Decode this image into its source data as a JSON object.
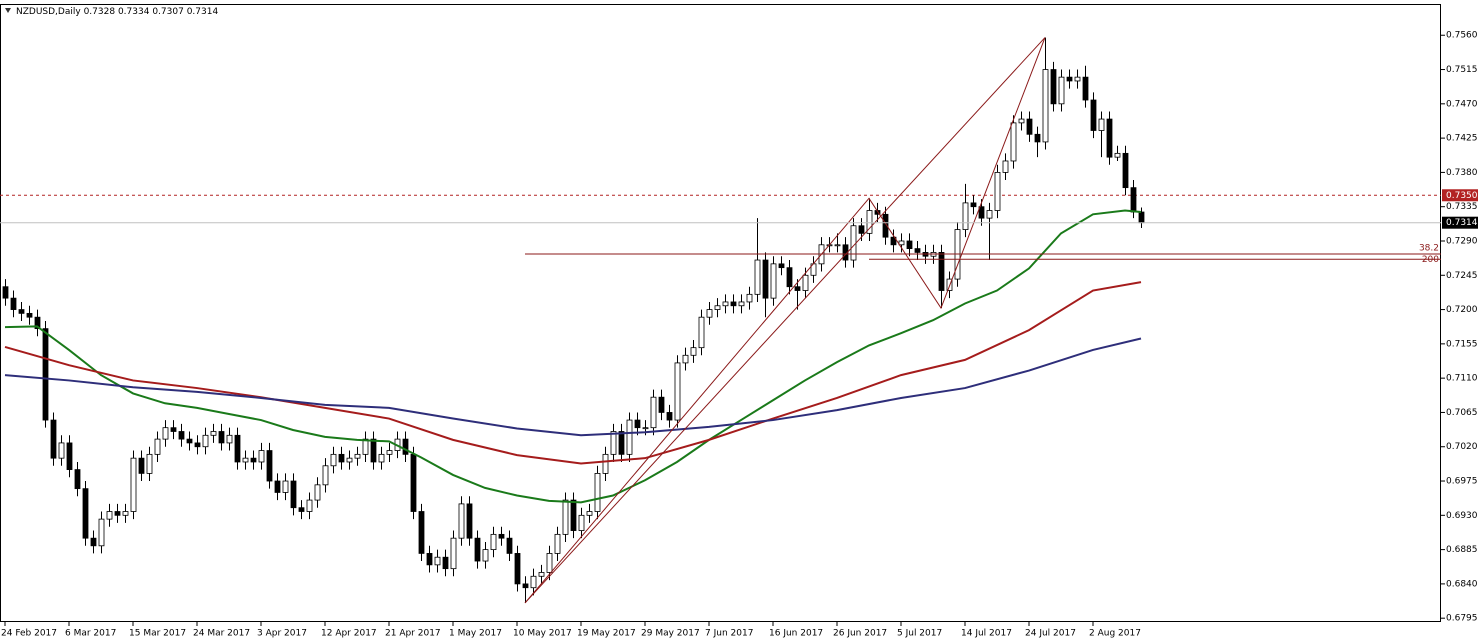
{
  "chart_data": {
    "type": "candlestick",
    "title": "NZDUSD,Daily",
    "categories": [
      "24 Feb 2017",
      null,
      null,
      null,
      null,
      null,
      null,
      null,
      "6 Mar 2017",
      null,
      null,
      null,
      null,
      null,
      null,
      null,
      "15 Mar 2017",
      null,
      null,
      null,
      null,
      null,
      null,
      null,
      "24 Mar 2017",
      null,
      null,
      null,
      null,
      null,
      null,
      null,
      "3 Apr 2017",
      null,
      null,
      null,
      null,
      null,
      null,
      null,
      "12 Apr 2017",
      null,
      null,
      null,
      null,
      null,
      null,
      null,
      "21 Apr 2017",
      null,
      null,
      null,
      null,
      null,
      null,
      null,
      "1 May 2017",
      null,
      null,
      null,
      null,
      null,
      null,
      null,
      "10 May 2017",
      null,
      null,
      null,
      null,
      null,
      null,
      null,
      "19 May 2017",
      null,
      null,
      null,
      null,
      null,
      null,
      null,
      "29 May 2017",
      null,
      null,
      null,
      null,
      null,
      null,
      null,
      "7 Jun 2017",
      null,
      null,
      null,
      null,
      null,
      null,
      null,
      "16 Jun 2017",
      null,
      null,
      null,
      null,
      null,
      null,
      null,
      "26 Jun 2017",
      null,
      null,
      null,
      null,
      null,
      null,
      null,
      "5 Jul 2017",
      null,
      null,
      null,
      null,
      null,
      null,
      null,
      "14 Jul 2017",
      null,
      null,
      null,
      null,
      null,
      null,
      null,
      "24 Jul 2017",
      null,
      null,
      null,
      null,
      null,
      null,
      null,
      "2 Aug 2017",
      null,
      null,
      null,
      null,
      null,
      null
    ],
    "open": [
      0.723,
      0.7215,
      0.72,
      0.7195,
      0.719,
      0.7175,
      0.7055,
      0.7005,
      0.7025,
      0.699,
      0.6965,
      0.69,
      0.689,
      0.6925,
      0.6935,
      0.693,
      0.6935,
      0.7005,
      0.6985,
      0.701,
      0.703,
      0.7045,
      0.704,
      0.703,
      0.7025,
      0.702,
      0.7035,
      0.704,
      0.7025,
      0.7035,
      0.7,
      0.7005,
      0.7,
      0.7015,
      0.6975,
      0.696,
      0.6975,
      0.694,
      0.6935,
      0.695,
      0.697,
      0.6995,
      0.701,
      0.7,
      0.7005,
      0.701,
      0.703,
      0.7,
      0.701,
      0.7015,
      0.703,
      0.701,
      0.6935,
      0.688,
      0.6865,
      0.6875,
      0.686,
      0.69,
      0.6945,
      0.69,
      0.687,
      0.6885,
      0.6905,
      0.69,
      0.688,
      0.684,
      0.6835,
      0.685,
      0.6855,
      0.688,
      0.6905,
      0.695,
      0.691,
      0.693,
      0.6935,
      0.6985,
      0.701,
      0.704,
      0.701,
      0.7055,
      0.7045,
      0.7045,
      0.7085,
      0.7065,
      0.7055,
      0.713,
      0.714,
      0.715,
      0.719,
      0.72,
      0.7205,
      0.721,
      0.7205,
      0.721,
      0.722,
      0.7265,
      0.7215,
      0.726,
      0.7255,
      0.723,
      0.7225,
      0.7245,
      0.726,
      0.7285,
      0.7285,
      0.7285,
      0.7265,
      0.731,
      0.73,
      0.733,
      0.7325,
      0.7295,
      0.7285,
      0.729,
      0.728,
      0.7275,
      0.727,
      0.7275,
      0.7225,
      0.724,
      0.7305,
      0.734,
      0.7335,
      0.732,
      0.733,
      0.738,
      0.7395,
      0.7445,
      0.745,
      0.743,
      0.742,
      0.7515,
      0.747,
      0.7505,
      0.75,
      0.7505,
      0.7475,
      0.7435,
      0.745,
      0.74,
      0.7405,
      0.736,
      0.7328
    ],
    "high": [
      0.724,
      0.7225,
      0.721,
      0.7205,
      0.72,
      0.7185,
      0.7065,
      0.7035,
      0.7035,
      0.7,
      0.6975,
      0.691,
      0.6935,
      0.6945,
      0.6945,
      0.6945,
      0.7015,
      0.7015,
      0.702,
      0.704,
      0.7055,
      0.7055,
      0.705,
      0.704,
      0.7035,
      0.7045,
      0.705,
      0.705,
      0.7045,
      0.7045,
      0.7015,
      0.7015,
      0.7025,
      0.7025,
      0.6985,
      0.6985,
      0.6985,
      0.695,
      0.696,
      0.698,
      0.7005,
      0.702,
      0.702,
      0.7015,
      0.702,
      0.704,
      0.704,
      0.702,
      0.7025,
      0.704,
      0.704,
      0.702,
      0.6945,
      0.689,
      0.6885,
      0.6885,
      0.691,
      0.6955,
      0.6955,
      0.691,
      0.6895,
      0.6915,
      0.6915,
      0.691,
      0.689,
      0.685,
      0.686,
      0.6865,
      0.689,
      0.6915,
      0.696,
      0.696,
      0.694,
      0.6945,
      0.6995,
      0.702,
      0.705,
      0.705,
      0.7065,
      0.7065,
      0.7055,
      0.7095,
      0.7095,
      0.7075,
      0.714,
      0.715,
      0.716,
      0.72,
      0.721,
      0.7215,
      0.722,
      0.722,
      0.722,
      0.723,
      0.732,
      0.7275,
      0.727,
      0.727,
      0.7265,
      0.724,
      0.7255,
      0.727,
      0.7295,
      0.7295,
      0.73,
      0.7295,
      0.732,
      0.732,
      0.7346,
      0.734,
      0.7335,
      0.7305,
      0.73,
      0.73,
      0.729,
      0.7285,
      0.7285,
      0.7285,
      0.725,
      0.7315,
      0.7365,
      0.735,
      0.7345,
      0.734,
      0.739,
      0.7405,
      0.7455,
      0.746,
      0.746,
      0.744,
      0.7557,
      0.7525,
      0.7515,
      0.7515,
      0.7515,
      0.752,
      0.7485,
      0.746,
      0.746,
      0.7415,
      0.7415,
      0.737,
      0.7334
    ],
    "low": [
      0.7205,
      0.719,
      0.7185,
      0.718,
      0.7165,
      0.7045,
      0.6995,
      0.6995,
      0.698,
      0.6955,
      0.689,
      0.688,
      0.688,
      0.6915,
      0.692,
      0.692,
      0.6925,
      0.6975,
      0.6975,
      0.7,
      0.702,
      0.703,
      0.702,
      0.7015,
      0.701,
      0.701,
      0.7025,
      0.7015,
      0.7015,
      0.699,
      0.699,
      0.699,
      0.699,
      0.6965,
      0.695,
      0.695,
      0.693,
      0.6925,
      0.6925,
      0.694,
      0.696,
      0.6985,
      0.699,
      0.699,
      0.6995,
      0.7,
      0.699,
      0.699,
      0.7,
      0.7005,
      0.7,
      0.6925,
      0.687,
      0.6855,
      0.6855,
      0.685,
      0.685,
      0.689,
      0.689,
      0.686,
      0.686,
      0.6875,
      0.689,
      0.687,
      0.683,
      0.6815,
      0.6825,
      0.684,
      0.6845,
      0.687,
      0.6895,
      0.69,
      0.69,
      0.692,
      0.6925,
      0.6975,
      0.7,
      0.7,
      0.7,
      0.7035,
      0.7035,
      0.7035,
      0.7055,
      0.7045,
      0.7045,
      0.712,
      0.713,
      0.714,
      0.718,
      0.719,
      0.7195,
      0.7195,
      0.7195,
      0.72,
      0.721,
      0.719,
      0.7205,
      0.7245,
      0.722,
      0.72,
      0.7215,
      0.7235,
      0.725,
      0.7275,
      0.7275,
      0.7255,
      0.7255,
      0.729,
      0.729,
      0.7315,
      0.7285,
      0.7275,
      0.7275,
      0.727,
      0.7265,
      0.726,
      0.726,
      0.7202,
      0.7215,
      0.723,
      0.7295,
      0.7325,
      0.731,
      0.7265,
      0.732,
      0.737,
      0.7385,
      0.7435,
      0.742,
      0.74,
      0.741,
      0.746,
      0.746,
      0.749,
      0.749,
      0.7465,
      0.7425,
      0.74,
      0.739,
      0.7395,
      0.735,
      0.732,
      0.7307
    ],
    "close": [
      0.7215,
      0.72,
      0.7195,
      0.719,
      0.7175,
      0.7055,
      0.7005,
      0.7025,
      0.699,
      0.6965,
      0.69,
      0.689,
      0.6925,
      0.6935,
      0.693,
      0.6935,
      0.7005,
      0.6985,
      0.701,
      0.703,
      0.7045,
      0.704,
      0.703,
      0.7025,
      0.702,
      0.7035,
      0.704,
      0.7025,
      0.7035,
      0.7,
      0.7005,
      0.7,
      0.7015,
      0.6975,
      0.696,
      0.6975,
      0.694,
      0.6935,
      0.695,
      0.697,
      0.6995,
      0.701,
      0.7,
      0.7005,
      0.701,
      0.703,
      0.7,
      0.701,
      0.7015,
      0.703,
      0.701,
      0.6935,
      0.688,
      0.6865,
      0.6875,
      0.686,
      0.69,
      0.6945,
      0.69,
      0.687,
      0.6885,
      0.6905,
      0.69,
      0.688,
      0.684,
      0.6835,
      0.685,
      0.6855,
      0.688,
      0.6905,
      0.695,
      0.691,
      0.693,
      0.6935,
      0.6985,
      0.701,
      0.704,
      0.701,
      0.7055,
      0.7045,
      0.7045,
      0.7085,
      0.7065,
      0.7055,
      0.713,
      0.714,
      0.715,
      0.719,
      0.72,
      0.7205,
      0.721,
      0.7205,
      0.721,
      0.722,
      0.7265,
      0.7215,
      0.726,
      0.7255,
      0.723,
      0.7225,
      0.7245,
      0.726,
      0.7285,
      0.7285,
      0.7285,
      0.7265,
      0.731,
      0.73,
      0.733,
      0.7325,
      0.7295,
      0.7285,
      0.729,
      0.728,
      0.7275,
      0.727,
      0.7275,
      0.7225,
      0.724,
      0.7305,
      0.734,
      0.7335,
      0.732,
      0.733,
      0.738,
      0.7395,
      0.7445,
      0.745,
      0.743,
      0.742,
      0.7515,
      0.747,
      0.7505,
      0.75,
      0.7505,
      0.7475,
      0.7435,
      0.745,
      0.74,
      0.7405,
      0.736,
      0.7328,
      0.7314
    ],
    "ylim": [
      0.679,
      0.7601
    ],
    "yticks": [
      {
        "value": 0.756,
        "label": "0.7560"
      },
      0.7515,
      {
        "value": 0.747,
        "label": "0.7470"
      },
      0.7425,
      {
        "value": 0.738,
        "label": "0.7380"
      },
      0.7335,
      {
        "value": 0.729,
        "label": "0.7290"
      },
      0.7245,
      {
        "value": 0.72,
        "label": "0.7200"
      },
      0.7155,
      {
        "value": 0.711,
        "label": "0.7110"
      },
      0.7065,
      {
        "value": 0.702,
        "label": "0.7020"
      },
      0.6975,
      {
        "value": 0.693,
        "label": "0.6930"
      },
      0.6885,
      {
        "value": 0.684,
        "label": "0.6840"
      },
      0.6795
    ],
    "moving_averages": [
      {
        "color": "#1a7a1a",
        "x": [
          0,
          4,
          8,
          12,
          16,
          20,
          24,
          28,
          32,
          36,
          40,
          44,
          48,
          52,
          56,
          60,
          64,
          68,
          72,
          76,
          80,
          84,
          88,
          92,
          96,
          100,
          104,
          108,
          112,
          116,
          120,
          124,
          128,
          132,
          136,
          140,
          142
        ],
        "values": [
          0.7177,
          0.7178,
          0.7147,
          0.7114,
          0.709,
          0.7077,
          0.7071,
          0.7063,
          0.7055,
          0.7042,
          0.7033,
          0.7029,
          0.7027,
          0.7006,
          0.6983,
          0.6966,
          0.6956,
          0.6949,
          0.6947,
          0.6956,
          0.6976,
          0.7,
          0.7029,
          0.7055,
          0.7081,
          0.7107,
          0.7131,
          0.7153,
          0.7169,
          0.7186,
          0.7208,
          0.7225,
          0.7254,
          0.73,
          0.7325,
          0.733,
          0.7328
        ]
      },
      {
        "color": "#a51c1c",
        "x": [
          0,
          8,
          16,
          24,
          32,
          40,
          48,
          56,
          64,
          72,
          80,
          88,
          96,
          104,
          112,
          120,
          128,
          132,
          136,
          142
        ],
        "values": [
          0.7151,
          0.7127,
          0.7107,
          0.7097,
          0.7085,
          0.7071,
          0.7057,
          0.7029,
          0.7009,
          0.6998,
          0.7005,
          0.7029,
          0.7057,
          0.7084,
          0.7114,
          0.7134,
          0.7173,
          0.7199,
          0.7225,
          0.7236
        ]
      },
      {
        "color": "#2e2e7a",
        "x": [
          0,
          8,
          16,
          24,
          32,
          40,
          48,
          56,
          64,
          72,
          80,
          88,
          96,
          104,
          112,
          120,
          128,
          136,
          142
        ],
        "values": [
          0.7114,
          0.7107,
          0.7098,
          0.7092,
          0.7084,
          0.7075,
          0.7071,
          0.7057,
          0.7044,
          0.7035,
          0.7039,
          0.7046,
          0.7055,
          0.7068,
          0.7084,
          0.7097,
          0.712,
          0.7147,
          0.7162
        ]
      }
    ],
    "trend_color": "#8b1a1a",
    "trend_lines": [
      {
        "x": [
          65,
          130
        ],
        "values": [
          0.6815,
          0.7557
        ]
      },
      {
        "x": [
          65,
          108,
          117,
          130
        ],
        "values": [
          0.6815,
          0.7346,
          0.7202,
          0.7557
        ]
      }
    ],
    "fib_lines": [
      {
        "label": "38.2",
        "value": 0.7273,
        "start": 65
      },
      {
        "label": "200",
        "value": 0.7266,
        "start": 108
      }
    ],
    "levels": [
      {
        "value": 0.735,
        "label": "0.7350",
        "color": "#b22222"
      }
    ]
  }
}
